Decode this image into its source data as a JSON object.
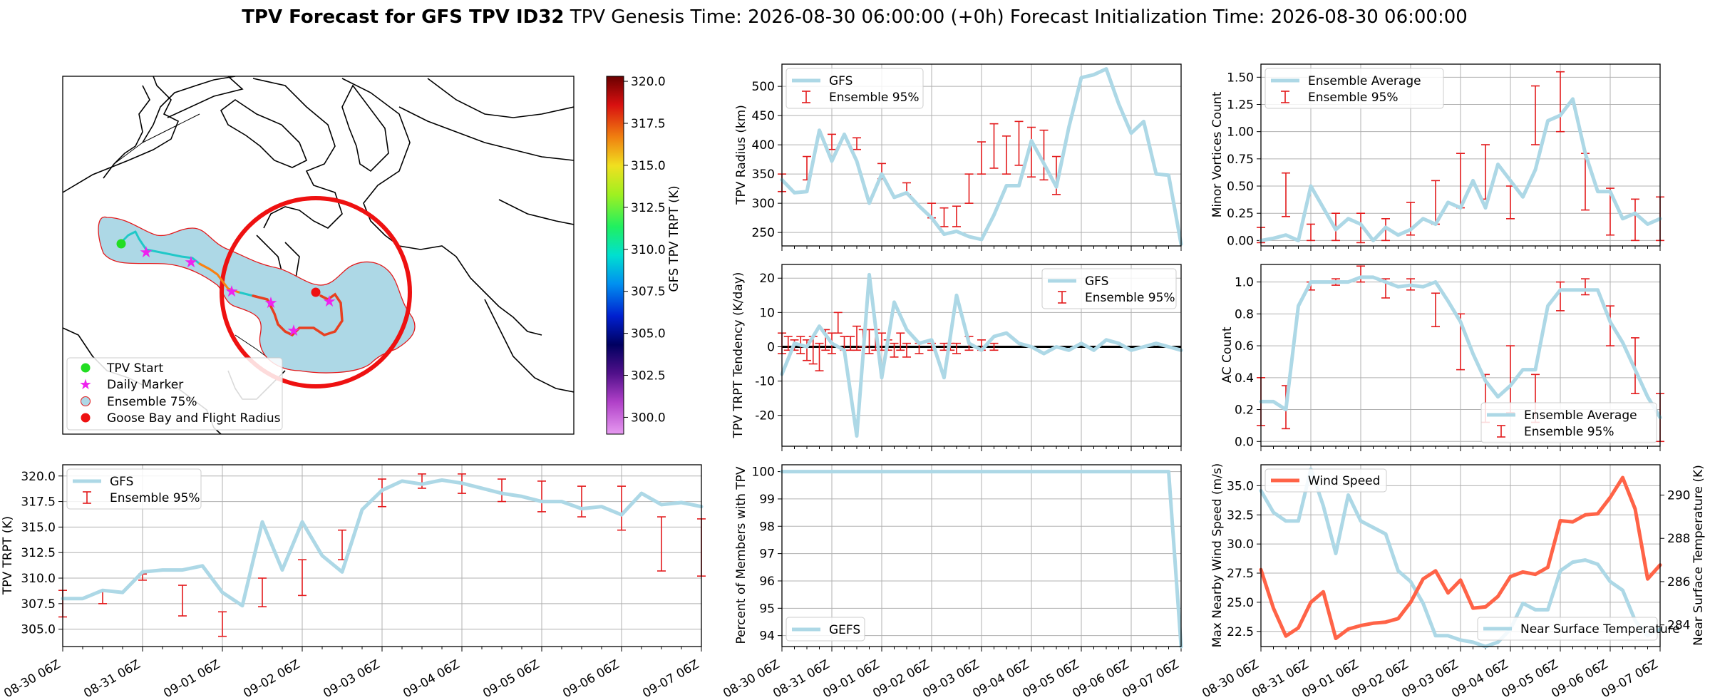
{
  "header": {
    "title_bold": "TPV Forecast for GFS TPV ID32",
    "genesis": "TPV Genesis Time: 2026-08-30 06:00:00 (+0h)",
    "init": "Forecast Initialization Time: 2026-08-30 06:00:00"
  },
  "colors": {
    "gfs": "#add8e6",
    "err": "#e31a1c",
    "wind": "#ff6347",
    "temp_axis": "#4169e1",
    "goose": "#ff1111"
  },
  "x_tick_labels": [
    "08-30 06Z",
    "08-31 06Z",
    "09-01 06Z",
    "09-02 06Z",
    "09-03 06Z",
    "09-04 06Z",
    "09-05 06Z",
    "09-06 06Z",
    "09-07 06Z"
  ],
  "map": {
    "colorbar": {
      "label": "GFS TPV TRPT (K)",
      "ticks": [
        "320.0",
        "317.5",
        "315.0",
        "312.5",
        "310.0",
        "307.5",
        "305.0",
        "302.5",
        "300.0"
      ],
      "range": [
        299,
        320.3
      ]
    },
    "legend": [
      "TPV Start",
      "Daily Marker",
      "Ensemble 75%",
      "Goose Bay and Flight Radius"
    ]
  },
  "chart_data": [
    {
      "id": "radius",
      "type": "line",
      "ylabel": "TPV Radius (km)",
      "legend": [
        "GFS",
        "Ensemble 95%"
      ],
      "ylim": [
        227,
        538
      ],
      "yticks": [
        250,
        300,
        350,
        400,
        450,
        500
      ],
      "xlim": [
        0,
        8
      ],
      "gfs": [
        340,
        318,
        320,
        425,
        372,
        418,
        372,
        300,
        350,
        310,
        318,
        295,
        275,
        247,
        252,
        243,
        238,
        280,
        330,
        330,
        407,
        368,
        328,
        430,
        515,
        520,
        530,
        470,
        420,
        440,
        350,
        348,
        230
      ],
      "err": [
        [
          0,
          320,
          350
        ],
        [
          0.5,
          340,
          380
        ],
        [
          1,
          392,
          418
        ],
        [
          1.5,
          392,
          412
        ],
        [
          2,
          342,
          368
        ],
        [
          2.5,
          315,
          335
        ],
        [
          3,
          275,
          300
        ],
        [
          3.25,
          260,
          292
        ],
        [
          3.5,
          260,
          295
        ],
        [
          3.75,
          300,
          350
        ],
        [
          4,
          350,
          405
        ],
        [
          4.25,
          360,
          436
        ],
        [
          4.5,
          350,
          415
        ],
        [
          4.75,
          365,
          440
        ],
        [
          5,
          345,
          430
        ],
        [
          5.25,
          340,
          425
        ],
        [
          5.5,
          315,
          380
        ]
      ]
    },
    {
      "id": "tendency",
      "type": "line",
      "ylabel": "TPV TRPT Tendency (K/day)",
      "legend": [
        "GFS",
        "Ensemble 95%"
      ],
      "ylim": [
        -29,
        24
      ],
      "yticks": [
        20,
        10,
        0,
        -10,
        -20
      ],
      "xlim": [
        0,
        8
      ],
      "zero_line": true,
      "gfs": [
        -8,
        1,
        0,
        6,
        1,
        -1,
        -26,
        21,
        -9,
        13,
        5,
        1,
        2,
        -9,
        15,
        1,
        -1,
        3,
        4,
        1,
        0,
        -2,
        0,
        -1,
        1,
        -1,
        2,
        1,
        -1,
        0,
        1,
        0,
        -1
      ],
      "err": [
        [
          0,
          -2,
          4
        ],
        [
          0.125,
          -1,
          3
        ],
        [
          0.25,
          -1,
          2
        ],
        [
          0.375,
          -2,
          3
        ],
        [
          0.5,
          -4,
          2
        ],
        [
          0.625,
          -5,
          3
        ],
        [
          0.75,
          -7,
          1
        ],
        [
          0.875,
          -1,
          5
        ],
        [
          1,
          -2,
          4
        ],
        [
          1.125,
          4,
          10
        ],
        [
          1.25,
          -1,
          3
        ],
        [
          1.375,
          -1,
          3
        ],
        [
          1.5,
          -1,
          6
        ],
        [
          1.625,
          0,
          5
        ],
        [
          1.75,
          -2,
          5
        ],
        [
          1.875,
          -1,
          5
        ],
        [
          2,
          -1,
          4
        ],
        [
          2.125,
          -1,
          2
        ],
        [
          2.25,
          -3,
          1
        ],
        [
          2.375,
          -1,
          4
        ],
        [
          2.5,
          -3,
          1
        ],
        [
          2.75,
          -2,
          1
        ],
        [
          3,
          -1,
          1
        ],
        [
          3.25,
          -1,
          1
        ],
        [
          3.375,
          -1,
          1
        ],
        [
          3.5,
          -2,
          1
        ],
        [
          3.75,
          -1,
          3
        ],
        [
          4,
          -1,
          2
        ],
        [
          4.25,
          -1,
          1
        ]
      ]
    },
    {
      "id": "minor",
      "type": "line",
      "ylabel": "Minor Vortices Count",
      "legend": [
        "Ensemble Average",
        "Ensemble 95%"
      ],
      "ylim": [
        -0.05,
        1.62
      ],
      "yticks": [
        0.0,
        0.25,
        0.5,
        0.75,
        1.0,
        1.25,
        1.5
      ],
      "xlim": [
        0,
        8
      ],
      "gfs": [
        0.0,
        0.02,
        0.05,
        0.0,
        0.5,
        0.3,
        0.1,
        0.2,
        0.15,
        0.0,
        0.12,
        0.05,
        0.1,
        0.2,
        0.15,
        0.35,
        0.3,
        0.55,
        0.3,
        0.7,
        0.55,
        0.4,
        0.65,
        1.1,
        1.15,
        1.3,
        0.8,
        0.45,
        0.45,
        0.2,
        0.25,
        0.15,
        0.2
      ],
      "err": [
        [
          0,
          -0.02,
          0.12
        ],
        [
          0.5,
          0.22,
          0.62
        ],
        [
          1,
          0.0,
          0.15
        ],
        [
          1.5,
          0.0,
          0.25
        ],
        [
          2,
          -0.02,
          0.25
        ],
        [
          2.5,
          0.0,
          0.2
        ],
        [
          3,
          0.05,
          0.35
        ],
        [
          3.5,
          0.15,
          0.55
        ],
        [
          4,
          0.3,
          0.8
        ],
        [
          4.5,
          0.38,
          0.88
        ],
        [
          5,
          0.2,
          0.5
        ],
        [
          5.5,
          0.88,
          1.42
        ],
        [
          6,
          1.0,
          1.55
        ],
        [
          6.5,
          0.28,
          0.8
        ],
        [
          7,
          0.05,
          0.48
        ],
        [
          7.5,
          0.0,
          0.38
        ],
        [
          8,
          0.0,
          0.4
        ]
      ]
    },
    {
      "id": "ac",
      "type": "line",
      "ylabel": "AC Count",
      "legend": [
        "Ensemble Average",
        "Ensemble 95%"
      ],
      "ylim": [
        -0.03,
        1.11
      ],
      "yticks": [
        0.0,
        0.2,
        0.4,
        0.6,
        0.8,
        1.0
      ],
      "xlim": [
        0,
        8
      ],
      "gfs": [
        0.25,
        0.25,
        0.2,
        0.85,
        1.0,
        1.0,
        1.0,
        1.0,
        1.03,
        1.03,
        1.0,
        0.97,
        0.98,
        0.97,
        1.0,
        0.88,
        0.75,
        0.55,
        0.38,
        0.28,
        0.35,
        0.45,
        0.45,
        0.85,
        0.95,
        0.95,
        0.95,
        0.95,
        0.75,
        0.62,
        0.45,
        0.28,
        0.15
      ],
      "err": [
        [
          0,
          0.1,
          0.4
        ],
        [
          0.5,
          0.08,
          0.35
        ],
        [
          1,
          0.95,
          1.0
        ],
        [
          1.5,
          0.98,
          1.02
        ],
        [
          2,
          1.0,
          1.1
        ],
        [
          2.5,
          0.9,
          1.02
        ],
        [
          3,
          0.95,
          1.02
        ],
        [
          3.5,
          0.72,
          0.93
        ],
        [
          4,
          0.45,
          0.8
        ],
        [
          4.5,
          0.12,
          0.42
        ],
        [
          5,
          0.18,
          0.6
        ],
        [
          5.5,
          0.12,
          0.42
        ],
        [
          6,
          0.82,
          1.0
        ],
        [
          6.5,
          0.92,
          1.02
        ],
        [
          7,
          0.6,
          0.85
        ],
        [
          7.5,
          0.3,
          0.65
        ],
        [
          8,
          0.0,
          0.3
        ]
      ]
    },
    {
      "id": "trpt",
      "type": "line",
      "ylabel": "TPV TRPT (K)",
      "legend": [
        "GFS",
        "Ensemble 95%"
      ],
      "ylim": [
        303.3,
        321.1
      ],
      "yticks": [
        305.0,
        307.5,
        310.0,
        312.5,
        315.0,
        317.5,
        320.0
      ],
      "xlim": [
        0,
        8
      ],
      "gfs": [
        308,
        308,
        308.8,
        308.6,
        310.6,
        310.8,
        310.8,
        311.2,
        308.6,
        307.3,
        315.5,
        310.8,
        315.5,
        312.2,
        310.6,
        316.7,
        318.6,
        319.5,
        319.2,
        319.6,
        319.3,
        318.8,
        318.3,
        318.0,
        317.5,
        317.5,
        316.8,
        317.0,
        316.2,
        318.3,
        317.2,
        317.4,
        317.0
      ],
      "err": [
        [
          0,
          306.2,
          308.8
        ],
        [
          0.5,
          307.5,
          308.7
        ],
        [
          1,
          309.8,
          310.4
        ],
        [
          1.5,
          306.3,
          309.3
        ],
        [
          2,
          304.3,
          306.7
        ],
        [
          2.5,
          307.2,
          310.0
        ],
        [
          3,
          308.3,
          311.8
        ],
        [
          3.5,
          311.8,
          314.7
        ],
        [
          4,
          317.0,
          319.7
        ],
        [
          4.5,
          318.8,
          320.2
        ],
        [
          5,
          318.3,
          320.2
        ],
        [
          5.5,
          317.5,
          319.7
        ],
        [
          6,
          316.5,
          319.5
        ],
        [
          6.5,
          316.0,
          319.0
        ],
        [
          7,
          314.7,
          319.0
        ],
        [
          7.5,
          310.7,
          316.0
        ],
        [
          8,
          310.2,
          315.8
        ]
      ]
    },
    {
      "id": "members",
      "type": "line",
      "ylabel": "Percent of Members with TPV",
      "legend": [
        "GEFS"
      ],
      "ylim": [
        93.6,
        100.25
      ],
      "yticks": [
        94,
        95,
        96,
        97,
        98,
        99,
        100
      ],
      "xlim": [
        0,
        8
      ],
      "x": [
        0,
        7.75,
        8
      ],
      "y": [
        100,
        100,
        93.6
      ]
    },
    {
      "id": "wind",
      "type": "line",
      "ylabel": "Max Nearby Wind Speed (m/s)",
      "ylabel_right": "Near Surface Temperature (K)",
      "legend": [
        "Wind Speed",
        "Near Surface Temperature"
      ],
      "ylim": [
        21.2,
        36.8
      ],
      "yticks": [
        22.5,
        25.0,
        27.5,
        30.0,
        32.5,
        35.0
      ],
      "ylim_right": [
        283.0,
        291.4
      ],
      "yticks_right": [
        284,
        286,
        288,
        290
      ],
      "xlim": [
        0,
        8
      ],
      "wind": [
        27.8,
        24.5,
        22.1,
        22.8,
        25.0,
        25.9,
        21.9,
        22.7,
        23.0,
        23.2,
        23.3,
        23.6,
        25.0,
        27.0,
        27.7,
        25.8,
        26.9,
        24.5,
        24.6,
        25.5,
        27.2,
        27.6,
        27.4,
        28.0,
        32.0,
        31.9,
        32.5,
        32.6,
        34.0,
        35.7,
        33.0,
        27.0,
        28.2
      ],
      "temp": [
        290.2,
        289.2,
        288.8,
        288.8,
        291.2,
        289.5,
        287.3,
        290.0,
        288.8,
        288.5,
        288.2,
        286.5,
        286.0,
        285.0,
        283.5,
        283.5,
        283.3,
        283.2,
        283.0,
        283.2,
        283.8,
        285.0,
        284.7,
        284.7,
        286.5,
        286.9,
        287.0,
        286.8,
        286.0,
        285.6,
        284.2,
        283.5,
        283.8
      ]
    }
  ]
}
